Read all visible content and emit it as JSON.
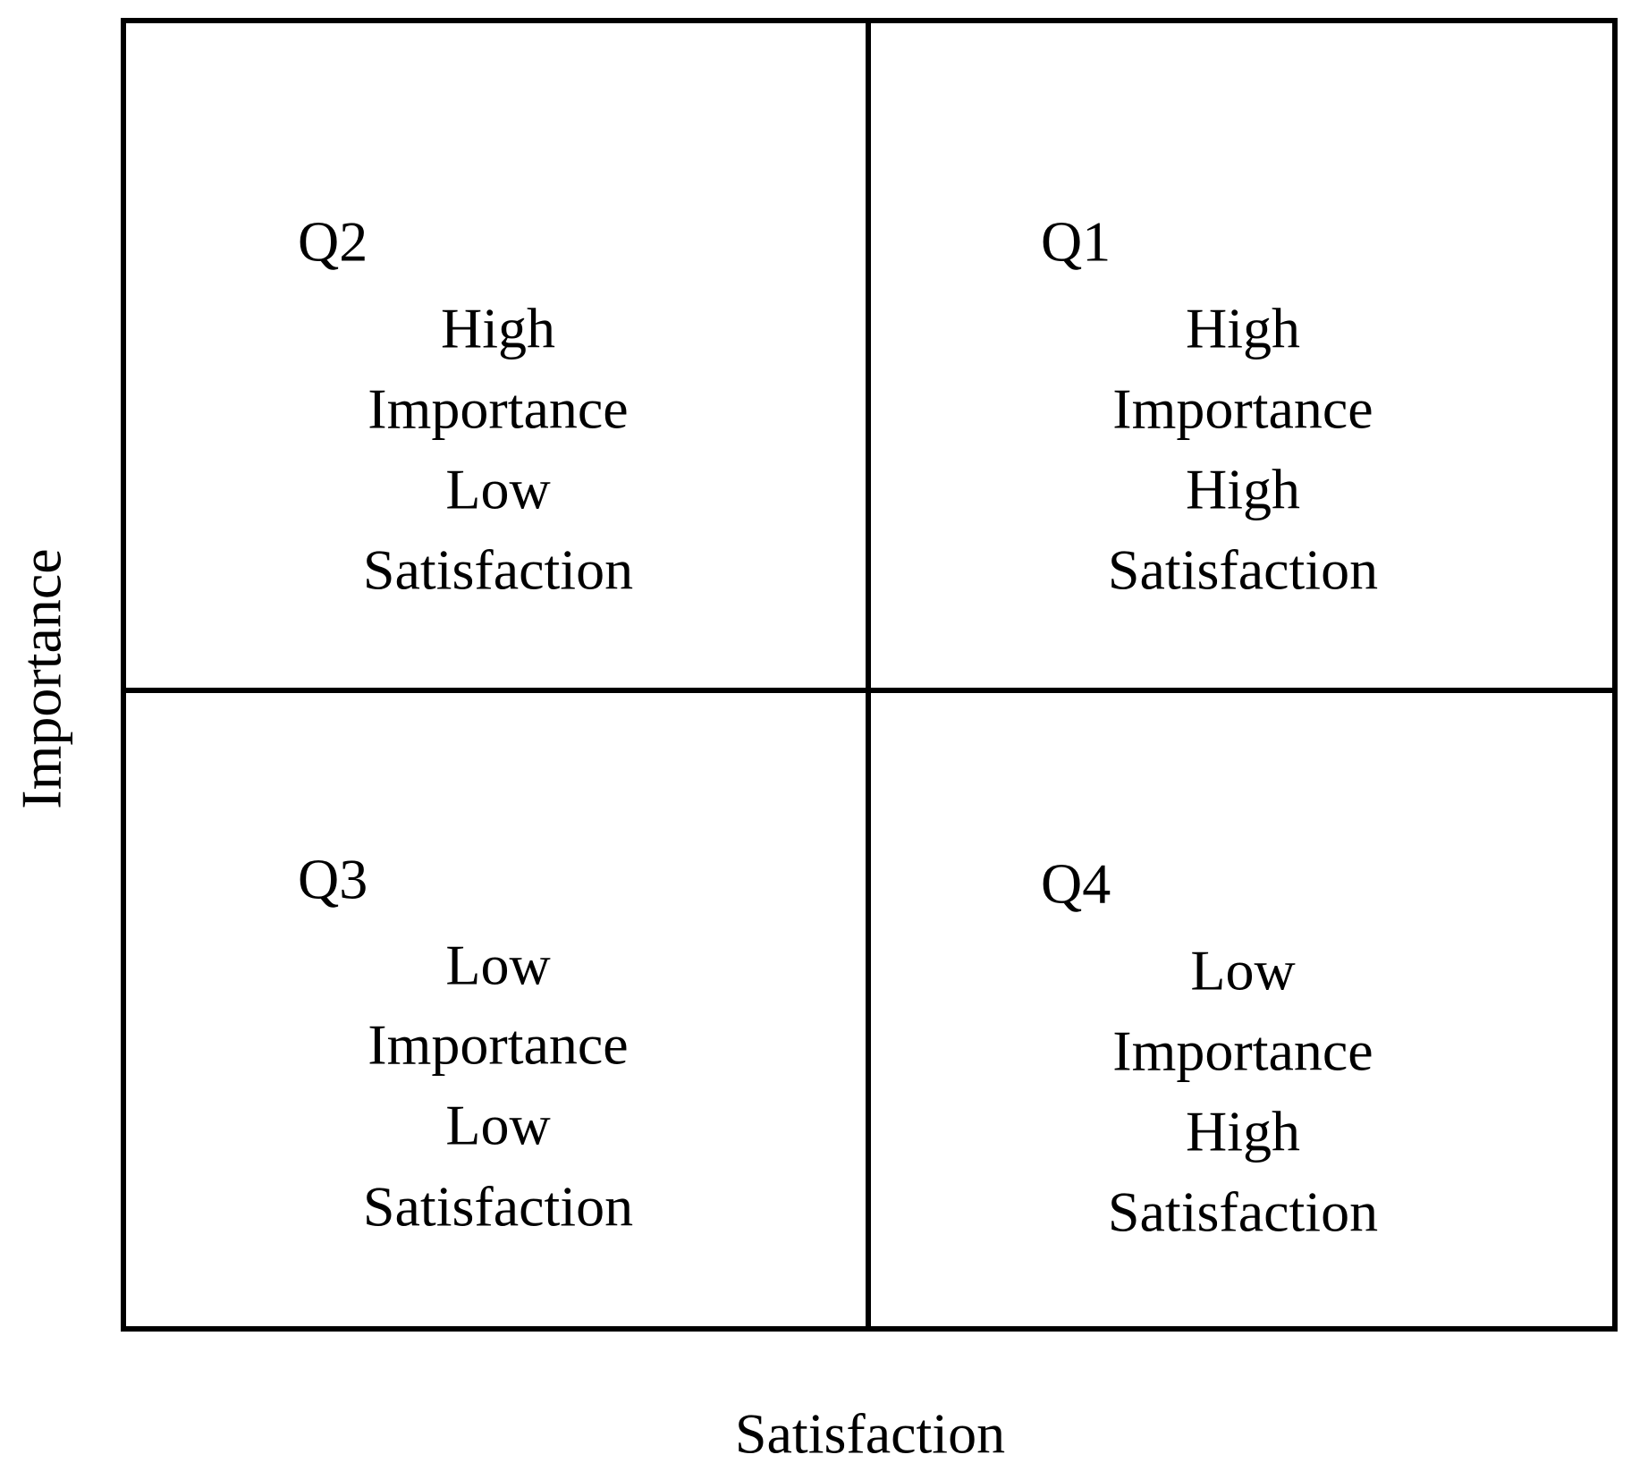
{
  "axes": {
    "x_label": "Satisfaction",
    "y_label": "Importance"
  },
  "quadrants": [
    {
      "id": "Q2",
      "lines": [
        "High",
        "Importance",
        "Low",
        "Satisfaction"
      ]
    },
    {
      "id": "Q1",
      "lines": [
        "High",
        "Importance",
        "High",
        "Satisfaction"
      ]
    },
    {
      "id": "Q3",
      "lines": [
        "Low",
        "Importance",
        "Low",
        "Satisfaction"
      ]
    },
    {
      "id": "Q4",
      "lines": [
        "Low",
        "Importance",
        "High",
        "Satisfaction"
      ]
    }
  ]
}
